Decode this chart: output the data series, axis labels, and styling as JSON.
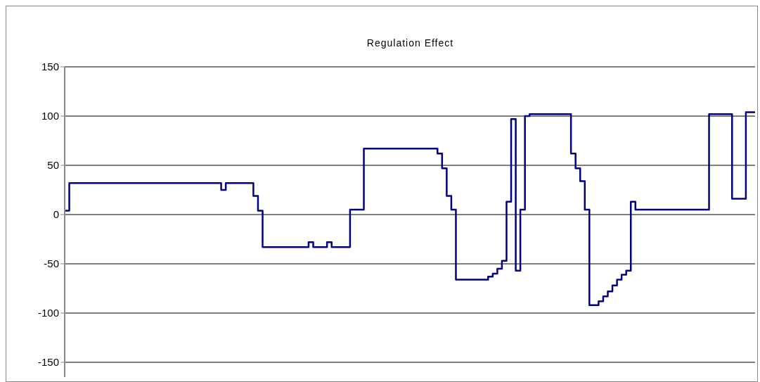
{
  "chart_data": {
    "type": "step",
    "title": "Regulation Effect",
    "categories": [
      null,
      null,
      null,
      null,
      null,
      null,
      null,
      null,
      null,
      null,
      null,
      null,
      null,
      null,
      null,
      null,
      null,
      null,
      null,
      null,
      null,
      null,
      null,
      null,
      null,
      null,
      null,
      null,
      null,
      null,
      null,
      null,
      null,
      null,
      null,
      null,
      null,
      null,
      null,
      null,
      null,
      null,
      null,
      null,
      null,
      null,
      null,
      null,
      null,
      null,
      null,
      null,
      null,
      null,
      null,
      null,
      null,
      null,
      null,
      null,
      null,
      null,
      null,
      null,
      null,
      null,
      null,
      null,
      null,
      null,
      null,
      null,
      null,
      null,
      null,
      null,
      null,
      null,
      null,
      null,
      null,
      null,
      null,
      null,
      null,
      null,
      null,
      null,
      null,
      null,
      null,
      null,
      null,
      null,
      null,
      null,
      null,
      null,
      null,
      null,
      null,
      null,
      null,
      null,
      null,
      null,
      null,
      null,
      null,
      null,
      null,
      null,
      null,
      null,
      null,
      null,
      null,
      null,
      null,
      null,
      null,
      null,
      null,
      null,
      null,
      null,
      null,
      null,
      null,
      null,
      null,
      null,
      null,
      null,
      null,
      null,
      null,
      null,
      null,
      null,
      null,
      null,
      null,
      null,
      null,
      null,
      null,
      null,
      null,
      null,
      null
    ],
    "series": [
      {
        "color": "#000080",
        "values": [
          4,
          32,
          32,
          32,
          32,
          32,
          32,
          32,
          32,
          32,
          32,
          32,
          32,
          32,
          32,
          32,
          32,
          32,
          32,
          32,
          32,
          32,
          32,
          32,
          32,
          32,
          32,
          32,
          32,
          32,
          32,
          32,
          32,
          32,
          25,
          32,
          32,
          32,
          32,
          32,
          32,
          19,
          4,
          -33,
          -33,
          -33,
          -33,
          -33,
          -33,
          -33,
          -33,
          -33,
          -33,
          -28,
          -33,
          -33,
          -33,
          -28,
          -33,
          -33,
          -33,
          -33,
          5,
          5,
          5,
          67,
          67,
          67,
          67,
          67,
          67,
          67,
          67,
          67,
          67,
          67,
          67,
          67,
          67,
          67,
          67,
          62,
          47,
          19,
          5,
          -66,
          -66,
          -66,
          -66,
          -66,
          -66,
          -66,
          -63,
          -60,
          -55,
          -47,
          13,
          97,
          -57,
          5,
          100,
          102,
          102,
          102,
          102,
          102,
          102,
          102,
          102,
          102,
          62,
          47,
          34,
          5,
          -92,
          -92,
          -88,
          -83,
          -78,
          -72,
          -66,
          -61,
          -57,
          13,
          5,
          5,
          5,
          5,
          5,
          5,
          5,
          5,
          5,
          5,
          5,
          5,
          5,
          5,
          5,
          5,
          102,
          102,
          102,
          102,
          102,
          16,
          16,
          16,
          104,
          104,
          104
        ]
      }
    ],
    "ylim": [
      -165,
      150
    ],
    "yticks": [
      -150,
      -100,
      -50,
      0,
      50,
      100,
      150
    ],
    "grid": "y",
    "tick_labels": "y",
    "legend": false
  }
}
